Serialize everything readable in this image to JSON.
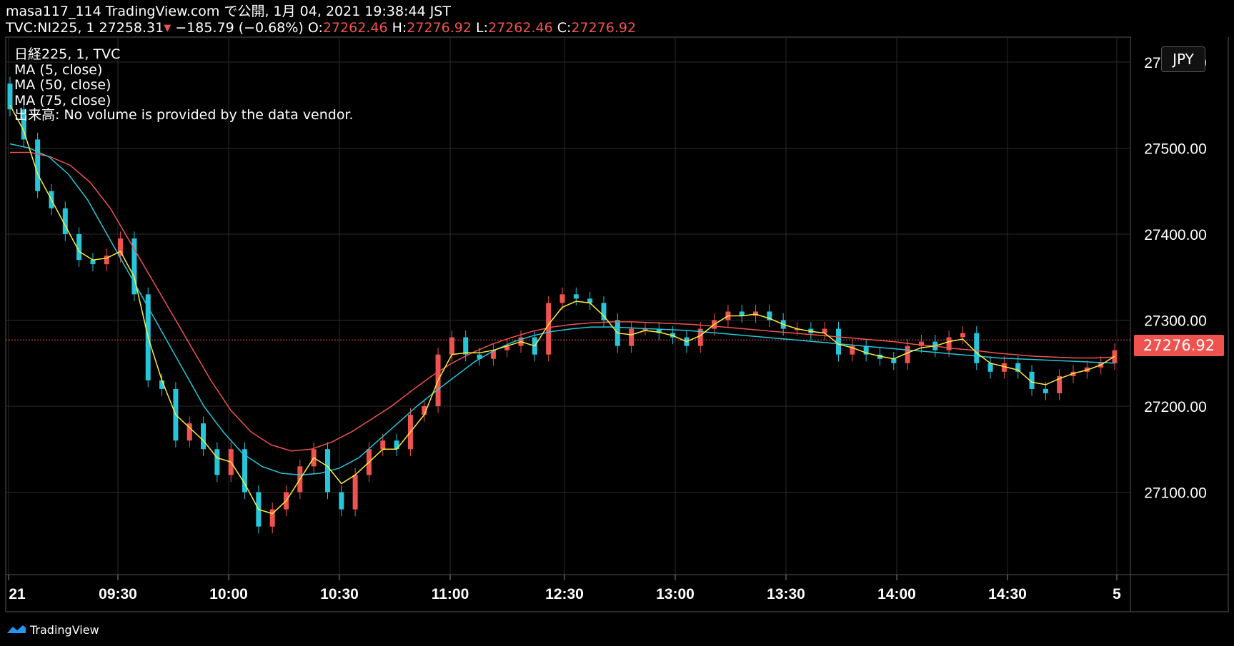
{
  "header": {
    "line1": "masa117_114 TradingView.com で公開, 1月 04, 2021 19:38:44 JST",
    "symbol": "TVC:NI225, 1 27258.31",
    "arrow": "▼",
    "change": "−185.79 (−0.68%) ",
    "o_label": "O:",
    "o_value": "27262.46",
    "h_label": " H:",
    "h_value": "27276.92",
    "l_label": " L:",
    "l_value": "27262.46",
    "c_label": " C:",
    "c_value": "27276.92"
  },
  "legend": {
    "title": "日経225, 1, TVC",
    "ma5": "MA (5, close)",
    "ma50": "MA (50, close)",
    "ma75": "MA (75, close)",
    "volume": "出来高: No volume is provided by the data vendor."
  },
  "currency": "JPY",
  "last_price": "27276.92",
  "footer": {
    "brand": "TradingView",
    "icon": "tradingview-logo-icon"
  },
  "colors": {
    "up": "#ef5350",
    "down": "#26c6da",
    "ma5": "#ffeb3b",
    "ma50": "#26c6da",
    "ma75": "#ef5350",
    "grid": "#2a2a2a",
    "background": "#000000"
  },
  "chart_data": {
    "type": "candlestick",
    "y_range": [
      27020,
      27590
    ],
    "y_ticks": [
      "27500.00",
      "27400.00",
      "27300.00",
      "27200.00",
      "27100.00"
    ],
    "y_top_partial": "27600.00",
    "x_ticks": [
      "21",
      "09:30",
      "10:00",
      "10:30",
      "11:00",
      "12:30",
      "13:00",
      "13:30",
      "14:00",
      "14:30",
      "5"
    ],
    "close": [
      27545,
      27510,
      27450,
      27430,
      27400,
      27370,
      27365,
      27375,
      27395,
      27330,
      27230,
      27220,
      27160,
      27180,
      27150,
      27120,
      27150,
      27100,
      27060,
      27080,
      27100,
      27130,
      27150,
      27100,
      27080,
      27120,
      27150,
      27160,
      27150,
      27190,
      27200,
      27260,
      27280,
      27260,
      27255,
      27265,
      27270,
      27280,
      27260,
      27320,
      27330,
      27325,
      27320,
      27300,
      27270,
      27290,
      27290,
      27285,
      27280,
      27270,
      27290,
      27300,
      27310,
      27305,
      27310,
      27300,
      27290,
      27290,
      27285,
      27290,
      27260,
      27270,
      27260,
      27255,
      27250,
      27270,
      27275,
      27265,
      27280,
      27285,
      27250,
      27240,
      27250,
      27240,
      27220,
      27215,
      27235,
      27240,
      27245,
      27250,
      27265
    ],
    "ma5": [
      27550,
      27520,
      27470,
      27440,
      27410,
      27380,
      27370,
      27372,
      27380,
      27350,
      27280,
      27230,
      27190,
      27175,
      27160,
      27140,
      27135,
      27110,
      27080,
      27075,
      27090,
      27115,
      27140,
      27130,
      27110,
      27120,
      27135,
      27150,
      27150,
      27170,
      27190,
      27230,
      27260,
      27262,
      27262,
      27265,
      27270,
      27275,
      27270,
      27295,
      27315,
      27322,
      27320,
      27305,
      27285,
      27283,
      27288,
      27286,
      27282,
      27275,
      27282,
      27295,
      27305,
      27305,
      27307,
      27302,
      27295,
      27290,
      27287,
      27285,
      27272,
      27268,
      27262,
      27258,
      27255,
      27262,
      27268,
      27270,
      27275,
      27278,
      27262,
      27250,
      27246,
      27242,
      27228,
      27225,
      27232,
      27238,
      27242,
      27248,
      27258
    ],
    "ma50": [
      27505,
      27500,
      27490,
      27470,
      27440,
      27400,
      27360,
      27320,
      27280,
      27240,
      27200,
      27170,
      27145,
      27130,
      27122,
      27120,
      27122,
      27128,
      27140,
      27160,
      27180,
      27200,
      27218,
      27235,
      27252,
      27265,
      27275,
      27282,
      27287,
      27290,
      27292,
      27292,
      27291,
      27290,
      27289,
      27288,
      27286,
      27284,
      27282,
      27280,
      27278,
      27276,
      27274,
      27272,
      27270,
      27268,
      27266,
      27264,
      27262,
      27260,
      27258,
      27256,
      27255,
      27254,
      27253,
      27252,
      27251,
      27250
    ],
    "ma75": [
      27495,
      27495,
      27490,
      27480,
      27460,
      27430,
      27390,
      27350,
      27310,
      27270,
      27230,
      27195,
      27170,
      27155,
      27148,
      27150,
      27158,
      27170,
      27185,
      27200,
      27218,
      27235,
      27250,
      27262,
      27272,
      27280,
      27287,
      27292,
      27295,
      27297,
      27298,
      27298,
      27297,
      27296,
      27295,
      27293,
      27291,
      27289,
      27287,
      27285,
      27283,
      27281,
      27279,
      27277,
      27275,
      27272,
      27270,
      27267,
      27265,
      27262,
      27260,
      27258,
      27257,
      27256,
      27256,
      27257
    ]
  }
}
